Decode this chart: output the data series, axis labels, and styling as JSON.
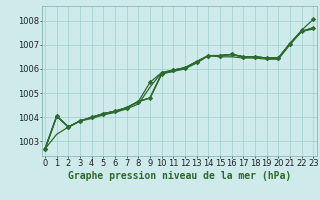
{
  "title": "Graphe pression niveau de la mer (hPa)",
  "bg_color": "#ceeaea",
  "grid_color": "#9fcfcf",
  "line_color": "#2d6a2d",
  "xlim": [
    -0.3,
    23.3
  ],
  "ylim": [
    1002.4,
    1008.6
  ],
  "yticks": [
    1003,
    1004,
    1005,
    1006,
    1007,
    1008
  ],
  "xticks": [
    0,
    1,
    2,
    3,
    4,
    5,
    6,
    7,
    8,
    9,
    10,
    11,
    12,
    13,
    14,
    15,
    16,
    17,
    18,
    19,
    20,
    21,
    22,
    23
  ],
  "series": [
    {
      "y": [
        1002.7,
        1003.3,
        1003.6,
        1003.85,
        1003.95,
        1004.1,
        1004.2,
        1004.35,
        1004.55,
        1005.25,
        1005.85,
        1005.95,
        1006.05,
        1006.25,
        1006.55,
        1006.5,
        1006.5,
        1006.45,
        1006.45,
        1006.4,
        1006.4,
        1007.0,
        1007.55,
        1007.65
      ],
      "marker": false,
      "lw": 0.9
    },
    {
      "y": [
        1002.7,
        1004.05,
        1003.6,
        1003.85,
        1004.0,
        1004.15,
        1004.25,
        1004.4,
        1004.65,
        1004.8,
        1005.8,
        1005.9,
        1006.0,
        1006.25,
        1006.55,
        1006.55,
        1006.6,
        1006.5,
        1006.5,
        1006.45,
        1006.45,
        1007.05,
        1007.55,
        1007.7
      ],
      "marker": false,
      "lw": 0.9
    },
    {
      "y": [
        1002.7,
        1004.05,
        1003.6,
        1003.85,
        1004.0,
        1004.15,
        1004.25,
        1004.4,
        1004.65,
        1004.8,
        1005.8,
        1005.9,
        1006.05,
        1006.3,
        1006.55,
        1006.55,
        1006.6,
        1006.5,
        1006.5,
        1006.45,
        1006.45,
        1007.05,
        1007.55,
        1007.7
      ],
      "marker": false,
      "lw": 0.9
    },
    {
      "y": [
        1002.7,
        1004.05,
        1003.6,
        1003.85,
        1004.0,
        1004.15,
        1004.25,
        1004.4,
        1004.65,
        1004.8,
        1005.8,
        1005.95,
        1006.05,
        1006.3,
        1006.55,
        1006.55,
        1006.6,
        1006.5,
        1006.5,
        1006.45,
        1006.45,
        1007.05,
        1007.55,
        1007.7
      ],
      "marker": true,
      "lw": 0.9
    },
    {
      "y": [
        1002.7,
        1004.05,
        1003.6,
        1003.85,
        1004.0,
        1004.15,
        1004.25,
        1004.4,
        1004.65,
        1005.45,
        1005.85,
        1005.95,
        1006.05,
        1006.3,
        1006.55,
        1006.55,
        1006.6,
        1006.5,
        1006.5,
        1006.45,
        1006.45,
        1007.05,
        1007.6,
        1008.05
      ],
      "marker": true,
      "lw": 0.9
    }
  ],
  "tick_fontsize": 6,
  "label_fontsize": 7,
  "label_color": "#2d6a2d",
  "spine_color": "#7ab0a0",
  "markersize": 2.2
}
